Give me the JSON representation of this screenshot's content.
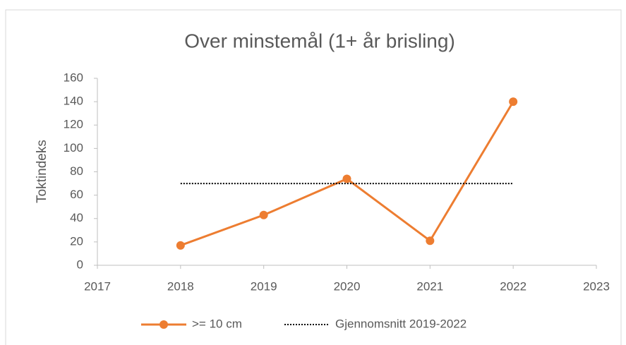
{
  "chart_data": {
    "type": "line",
    "title": "Over minstemål (1+ år brisling)",
    "ylabel": "Toktindeks",
    "xlim": [
      2017,
      2023
    ],
    "xticks": [
      2017,
      2018,
      2019,
      2020,
      2021,
      2022,
      2023
    ],
    "ylim": [
      0,
      160
    ],
    "yticks": [
      0,
      20,
      40,
      60,
      80,
      100,
      120,
      140,
      160
    ],
    "legend": "bottom",
    "series": [
      {
        "name": ">= 10 cm",
        "color": "#ed7d31",
        "style": "solid",
        "marker": true,
        "x": [
          2018,
          2019,
          2020,
          2021,
          2022
        ],
        "values": [
          17,
          43,
          74,
          21,
          140
        ]
      },
      {
        "name": "Gjennomsnitt 2019-2022",
        "color": "#000000",
        "style": "dotted",
        "marker": false,
        "x": [
          2018,
          2022
        ],
        "values": [
          70,
          70
        ]
      }
    ]
  }
}
